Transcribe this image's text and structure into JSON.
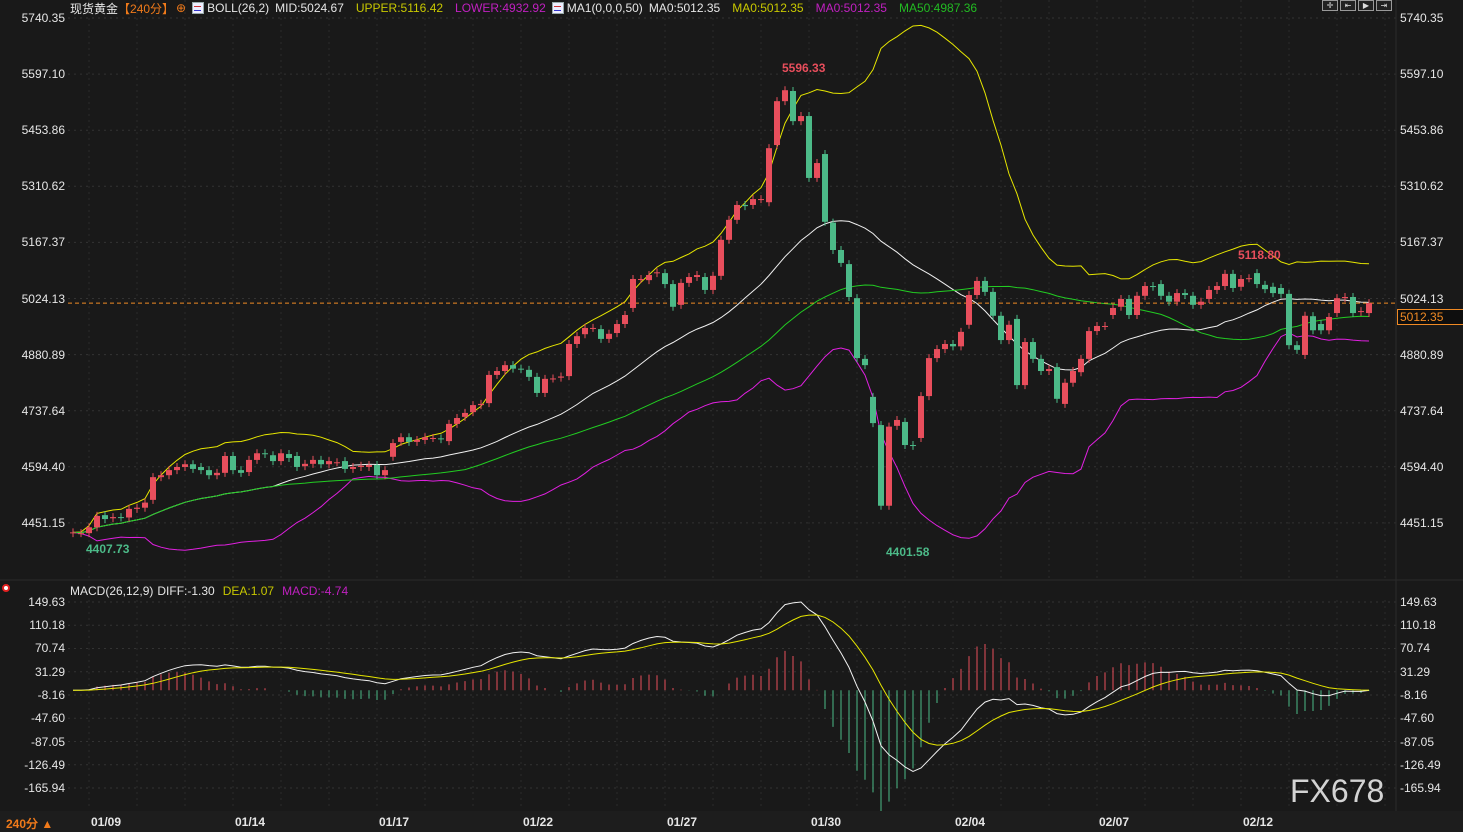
{
  "header": {
    "instrument": "现货黄金",
    "period_tag": "【240分】",
    "period_icon": "crosshair-circle-icon",
    "boll_label": "BOLL(26,2)",
    "mid": "MID:5024.67",
    "upper": "UPPER:5116.42",
    "lower": "LOWER:4932.92",
    "ma_label": "MA1(0,0,0,50)",
    "ma0_a": "MA0:5012.35",
    "ma0_b": "MA0:5012.35",
    "ma0_c": "MA0:5012.35",
    "ma50": "MA50:4987.36"
  },
  "toolbar": {
    "icons": [
      "crosshair-icon",
      "zoom-start-icon",
      "play-icon",
      "goto-end-icon"
    ]
  },
  "macd_header": {
    "label": "MACD(26,12,9)",
    "diff": "DIFF:-1.30",
    "dea": "DEA:1.07",
    "macd": "MACD:-4.74"
  },
  "footer": {
    "period": "240分 ▲"
  },
  "watermark": "FX678",
  "last_price": "5012.35",
  "colors": {
    "up": "#e84e5c",
    "down": "#4cba88",
    "upper": "#e6e600",
    "mid": "#f0f0f0",
    "lower": "#e020e0",
    "ma50": "#22cc22",
    "dea": "#e6e600",
    "diff": "#f0f0f0",
    "last": "#f08a24"
  },
  "chart_data": {
    "type": "candlestick",
    "title": "现货黄金",
    "price_axis": {
      "ticks": [
        "5740.35",
        "5597.10",
        "5453.86",
        "5310.62",
        "5167.37",
        "5024.13",
        "4880.89",
        "4737.64",
        "4594.40",
        "4451.15"
      ],
      "range": [
        4451.15,
        5740.35
      ]
    },
    "macd_axis": {
      "ticks": [
        "149.63",
        "110.18",
        "70.74",
        "31.29",
        "-8.16",
        "-47.60",
        "-87.05",
        "-126.49",
        "-165.94"
      ],
      "range": [
        -165.94,
        149.63
      ]
    },
    "x_ticks": [
      "01/09",
      "01/14",
      "01/17",
      "01/22",
      "01/27",
      "01/30",
      "02/04",
      "02/07",
      "02/12"
    ],
    "annotations": {
      "high": "5596.33",
      "low": "4401.58",
      "start_low": "4407.73",
      "recent_high": "5118.80"
    },
    "candles_open_close": [
      [
        4425,
        4427
      ],
      [
        4425,
        4425
      ],
      [
        4425,
        4440
      ],
      [
        4440,
        4469
      ],
      [
        4471,
        4461
      ],
      [
        4463,
        4466
      ],
      [
        4466,
        4465
      ],
      [
        4465,
        4487
      ],
      [
        4487,
        4490
      ],
      [
        4490,
        4503
      ],
      [
        4510,
        4568
      ],
      [
        4568,
        4573
      ],
      [
        4573,
        4586
      ],
      [
        4586,
        4594
      ],
      [
        4594,
        4601
      ],
      [
        4601,
        4589
      ],
      [
        4594,
        4586
      ],
      [
        4586,
        4573
      ],
      [
        4573,
        4579
      ],
      [
        4579,
        4622
      ],
      [
        4622,
        4586
      ],
      [
        4586,
        4579
      ],
      [
        4581,
        4612
      ],
      [
        4612,
        4629
      ],
      [
        4629,
        4627
      ],
      [
        4624,
        4609
      ],
      [
        4609,
        4629
      ],
      [
        4627,
        4617
      ],
      [
        4622,
        4594
      ],
      [
        4596,
        4602
      ],
      [
        4602,
        4612
      ],
      [
        4612,
        4601
      ],
      [
        4601,
        4609
      ],
      [
        4606,
        4606
      ],
      [
        4609,
        4589
      ],
      [
        4589,
        4594
      ],
      [
        4594,
        4597
      ],
      [
        4594,
        4599
      ],
      [
        4599,
        4573
      ],
      [
        4573,
        4586
      ],
      [
        4620,
        4655
      ],
      [
        4658,
        4670
      ],
      [
        4670,
        4658
      ],
      [
        4658,
        4663
      ],
      [
        4663,
        4670
      ],
      [
        4668,
        4668
      ],
      [
        4667,
        4665
      ],
      [
        4660,
        4704
      ],
      [
        4704,
        4719
      ],
      [
        4722,
        4732
      ],
      [
        4734,
        4752
      ],
      [
        4752,
        4755
      ],
      [
        4757,
        4829
      ],
      [
        4829,
        4839
      ],
      [
        4839,
        4854
      ],
      [
        4854,
        4845
      ],
      [
        4845,
        4844
      ],
      [
        4842,
        4824
      ],
      [
        4824,
        4783
      ],
      [
        4783,
        4819
      ],
      [
        4820,
        4820
      ],
      [
        4822,
        4825
      ],
      [
        4826,
        4908
      ],
      [
        4908,
        4928
      ],
      [
        4933,
        4949
      ],
      [
        4949,
        4949
      ],
      [
        4946,
        4921
      ],
      [
        4921,
        4934
      ],
      [
        4936,
        4959
      ],
      [
        4959,
        4982
      ],
      [
        5000,
        5074
      ],
      [
        5074,
        5074
      ],
      [
        5071,
        5084
      ],
      [
        5089,
        5091
      ],
      [
        5089,
        5061
      ],
      [
        5061,
        5003
      ],
      [
        5008,
        5064
      ],
      [
        5064,
        5079
      ],
      [
        5079,
        5084
      ],
      [
        5079,
        5046
      ],
      [
        5046,
        5082
      ],
      [
        5082,
        5174
      ],
      [
        5174,
        5225
      ],
      [
        5225,
        5263
      ],
      [
        5263,
        5260
      ],
      [
        5263,
        5278
      ],
      [
        5278,
        5278
      ],
      [
        5270,
        5408
      ],
      [
        5416,
        5528
      ],
      [
        5528,
        5556
      ],
      [
        5554,
        5477
      ],
      [
        5477,
        5490
      ],
      [
        5490,
        5332
      ],
      [
        5332,
        5370
      ],
      [
        5393,
        5220
      ],
      [
        5218,
        5148
      ],
      [
        5148,
        5115
      ],
      [
        5112,
        5028
      ],
      [
        5025,
        4872
      ],
      [
        4870,
        4854
      ],
      [
        4773,
        4706
      ],
      [
        4701,
        4495
      ],
      [
        4495,
        4697
      ],
      [
        4699,
        4714
      ],
      [
        4709,
        4650
      ],
      [
        4650,
        4648
      ],
      [
        4668,
        4775
      ],
      [
        4775,
        4872
      ],
      [
        4872,
        4895
      ],
      [
        4895,
        4908
      ],
      [
        4908,
        4902
      ],
      [
        4902,
        4939
      ],
      [
        4957,
        5033
      ],
      [
        5033,
        5069
      ],
      [
        5069,
        5041
      ],
      [
        5041,
        4980
      ],
      [
        4980,
        4918
      ],
      [
        4918,
        4957
      ],
      [
        4972,
        4803
      ],
      [
        4803,
        4913
      ],
      [
        4913,
        4870
      ],
      [
        4870,
        4839
      ],
      [
        4839,
        4844
      ],
      [
        4849,
        4768
      ],
      [
        4755,
        4809
      ],
      [
        4809,
        4839
      ],
      [
        4836,
        4870
      ],
      [
        4870,
        4941
      ],
      [
        4941,
        4954
      ],
      [
        4954,
        4954
      ],
      [
        4982,
        5000
      ],
      [
        5003,
        5023
      ],
      [
        5023,
        4982
      ],
      [
        4982,
        5031
      ],
      [
        5031,
        5056
      ],
      [
        5056,
        5054
      ],
      [
        5061,
        5031
      ],
      [
        5031,
        5016
      ],
      [
        5016,
        5038
      ],
      [
        5038,
        5033
      ],
      [
        5031,
        5008
      ],
      [
        5008,
        5016
      ],
      [
        5023,
        5046
      ],
      [
        5046,
        5056
      ],
      [
        5056,
        5087
      ],
      [
        5087,
        5051
      ],
      [
        5054,
        5074
      ],
      [
        5076,
        5076
      ],
      [
        5089,
        5061
      ],
      [
        5059,
        5048
      ],
      [
        5054,
        5038
      ],
      [
        5051,
        5036
      ],
      [
        5036,
        4905
      ],
      [
        4905,
        4893
      ],
      [
        4880,
        4980
      ],
      [
        4979,
        4943
      ],
      [
        4959,
        4943
      ],
      [
        4943,
        4977
      ],
      [
        4987,
        5025
      ],
      [
        5025,
        5028
      ],
      [
        5028,
        4987
      ],
      [
        4990,
        4992
      ],
      [
        4987,
        5012.35
      ]
    ]
  }
}
